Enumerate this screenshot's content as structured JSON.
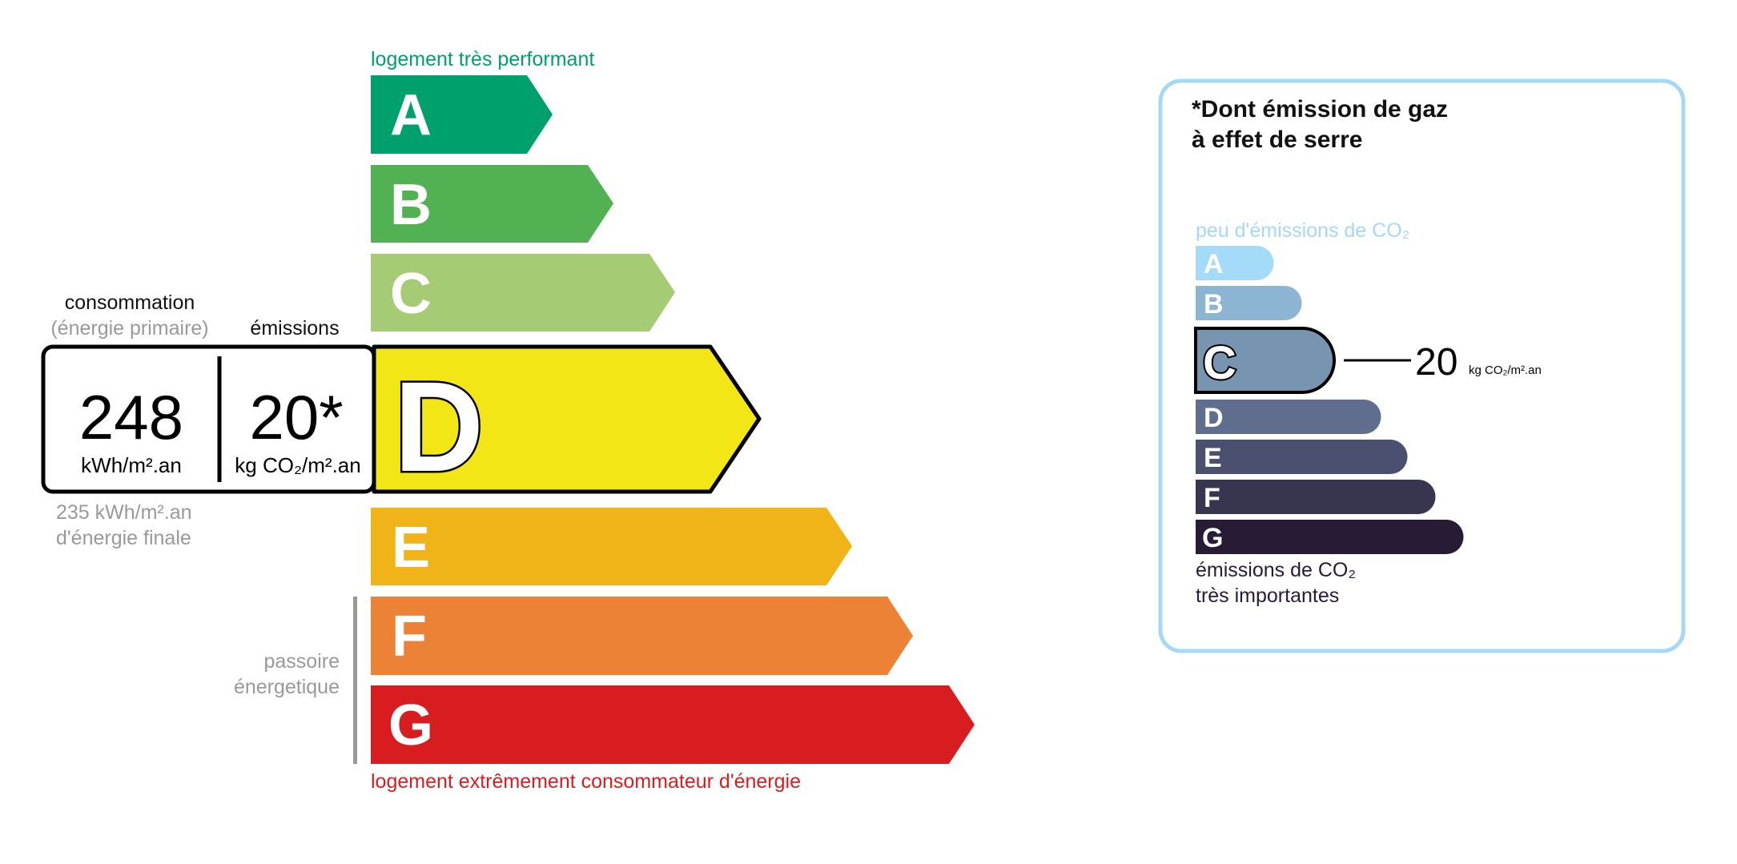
{
  "energy": {
    "top_label": "logement très performant",
    "bottom_label": "logement extrêmement consommateur d'énergie",
    "classes": [
      {
        "letter": "A",
        "color": "#00a06d"
      },
      {
        "letter": "B",
        "color": "#52b153"
      },
      {
        "letter": "C",
        "color": "#a5cc74"
      },
      {
        "letter": "D",
        "color": "#f2e617"
      },
      {
        "letter": "E",
        "color": "#f0b419"
      },
      {
        "letter": "F",
        "color": "#eb8235"
      },
      {
        "letter": "G",
        "color": "#d71d20"
      }
    ],
    "current_class": "D",
    "consumption_label": "consommation",
    "consumption_sublabel": "(énergie primaire)",
    "emissions_label": "émissions",
    "consumption_value": "248",
    "consumption_unit": "kWh/m².an",
    "emissions_value": "20*",
    "emissions_unit": "kg CO₂/m².an",
    "final_energy_value": "235 kWh/m².an",
    "final_energy_label": "d'énergie finale",
    "passoire_line1": "passoire",
    "passoire_line2": "énergetique",
    "top_color": "#00a06d",
    "bottom_color": "#d71d20"
  },
  "ges": {
    "title_line1": "*Dont émission de gaz",
    "title_line2": "à effet de serre",
    "top_label": "peu d'émissions de CO₂",
    "bottom_line1": "émissions de CO₂",
    "bottom_line2": "très importantes",
    "classes": [
      {
        "letter": "A",
        "color": "#a4dbf8"
      },
      {
        "letter": "B",
        "color": "#8cb4d3"
      },
      {
        "letter": "C",
        "color": "#7794b1"
      },
      {
        "letter": "D",
        "color": "#5f6e8f"
      },
      {
        "letter": "E",
        "color": "#4c5070"
      },
      {
        "letter": "F",
        "color": "#383551"
      },
      {
        "letter": "G",
        "color": "#281b35"
      }
    ],
    "current_class": "C",
    "value": "20",
    "unit": "kg CO₂/m².an",
    "border_color": "#a5d8f5"
  }
}
